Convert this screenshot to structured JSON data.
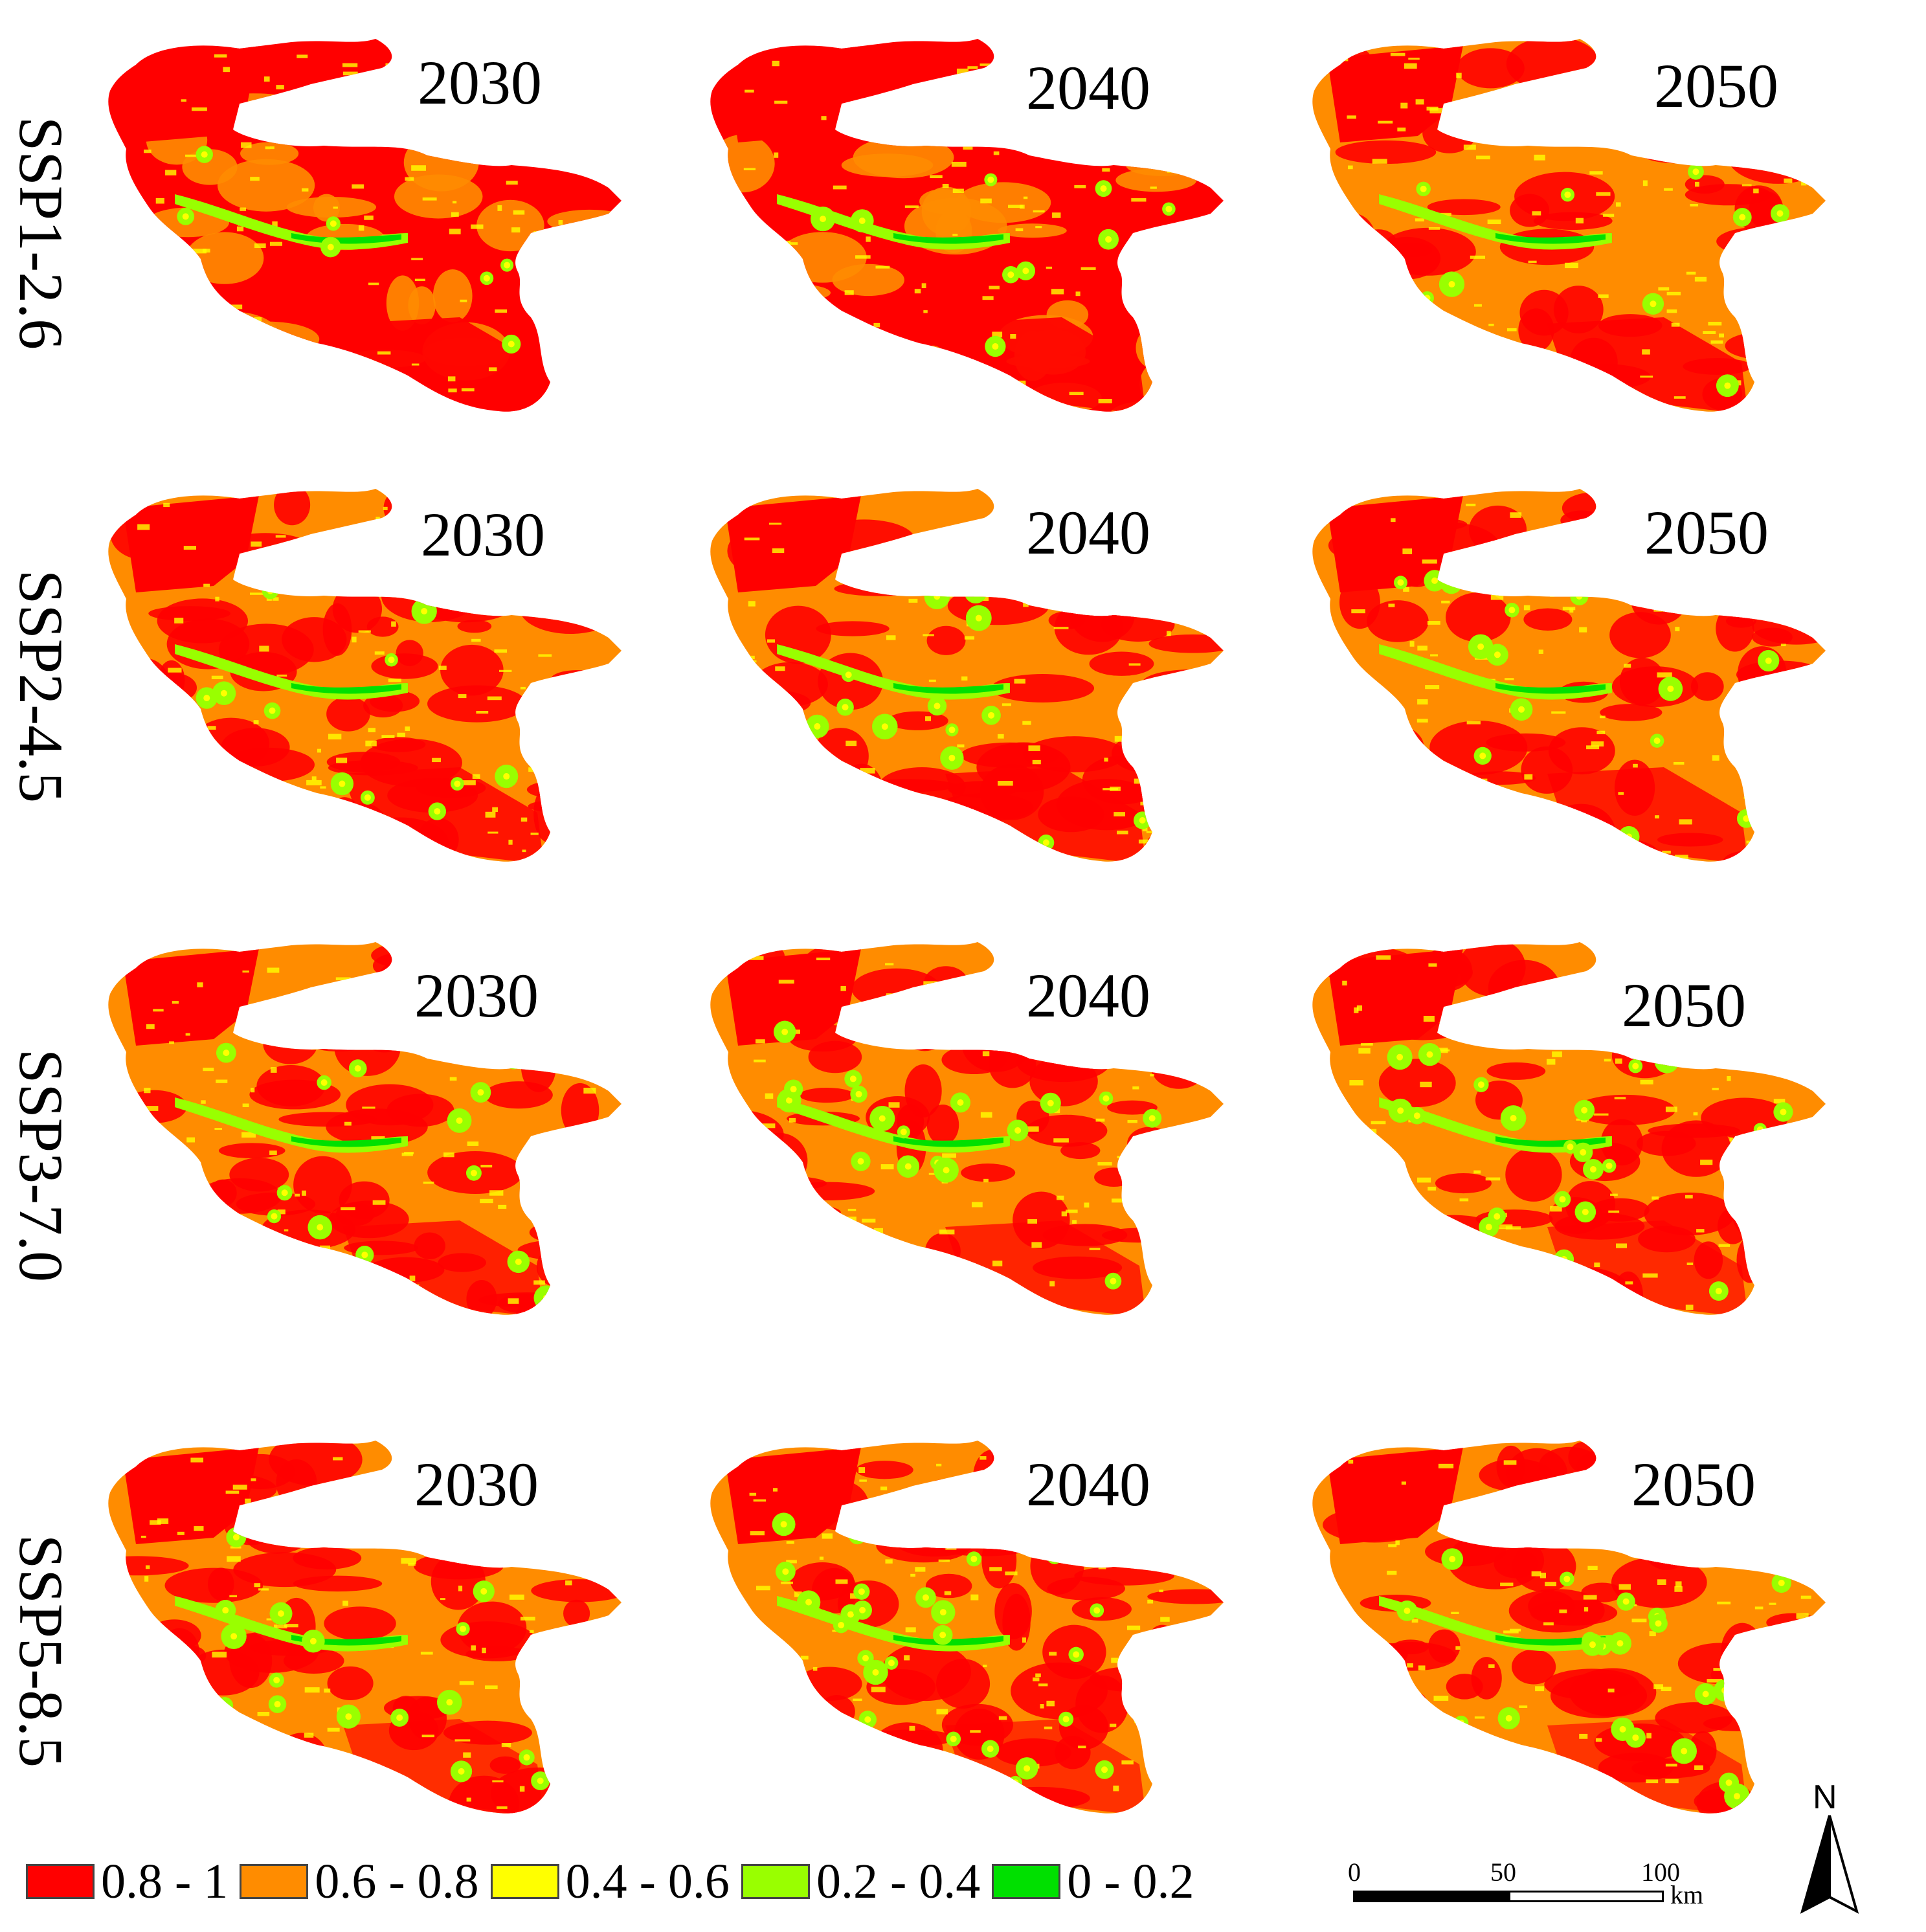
{
  "rows": [
    {
      "scenario": "SSP1-2.6",
      "years": [
        "2030",
        "2040",
        "2050"
      ]
    },
    {
      "scenario": "SSP2-4.5",
      "years": [
        "2030",
        "2040",
        "2050"
      ]
    },
    {
      "scenario": "SSP3-7.0",
      "years": [
        "2030",
        "2040",
        "2050"
      ]
    },
    {
      "scenario": "SSP5-8.5",
      "years": [
        "2030",
        "2040",
        "2050"
      ]
    }
  ],
  "legend": [
    {
      "label": "0.8 - 1",
      "color": "#ff0000"
    },
    {
      "label": "0.6 - 0.8",
      "color": "#ff8c00"
    },
    {
      "label": "0.4 - 0.6",
      "color": "#ffff00"
    },
    {
      "label": "0.2 - 0.4",
      "color": "#99ff00"
    },
    {
      "label": "0 - 0.2",
      "color": "#00e000"
    }
  ],
  "scale_bar": {
    "ticks": [
      "0",
      "50",
      "100"
    ],
    "unit": "km"
  },
  "north_arrow": {
    "label": "N",
    "icon": "north-arrow-icon"
  },
  "map_colors": {
    "class_0_8_1": "#ff0000",
    "class_0_6_0_8": "#ff8c00",
    "class_0_4_0_6": "#ffff00",
    "class_0_2_0_4": "#99ff00",
    "class_0_0_2": "#00e000"
  }
}
